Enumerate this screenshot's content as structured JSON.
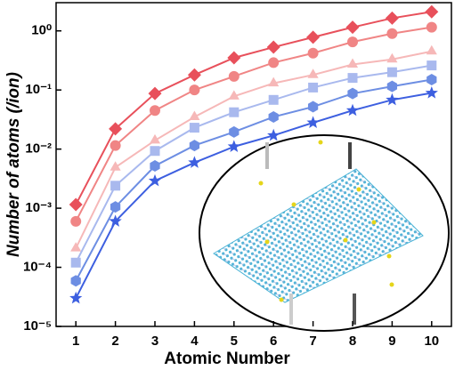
{
  "chart_data": {
    "type": "line",
    "x_label": "Atomic Number",
    "y_label": "Number of atoms (/ion)",
    "y_scale": "log",
    "xlim": [
      0.5,
      10.5
    ],
    "ylim": [
      1e-05,
      3
    ],
    "x": [
      1,
      2,
      3,
      4,
      5,
      6,
      7,
      8,
      9,
      10
    ],
    "xticks": [
      1,
      2,
      3,
      4,
      5,
      6,
      7,
      8,
      9,
      10
    ],
    "yticks": [
      {
        "value": 1e-05,
        "label": "10⁻⁵"
      },
      {
        "value": 0.0001,
        "label": "10⁻⁴"
      },
      {
        "value": 0.001,
        "label": "10⁻³"
      },
      {
        "value": 0.01,
        "label": "10⁻²"
      },
      {
        "value": 0.1,
        "label": "10⁻¹"
      },
      {
        "value": 1,
        "label": "10⁰"
      }
    ],
    "series": [
      {
        "color": "#e8505b",
        "marker": "diamond",
        "values": [
          0.00115,
          0.022,
          0.087,
          0.18,
          0.35,
          0.53,
          0.78,
          1.15,
          1.64,
          2.1
        ]
      },
      {
        "color": "#f08585",
        "marker": "circle",
        "values": [
          0.0006,
          0.0115,
          0.045,
          0.1,
          0.17,
          0.29,
          0.42,
          0.65,
          0.9,
          1.15
        ]
      },
      {
        "color": "#f6b8b8",
        "marker": "triangle",
        "values": [
          0.00021,
          0.0049,
          0.014,
          0.035,
          0.078,
          0.13,
          0.18,
          0.27,
          0.33,
          0.45
        ]
      },
      {
        "color": "#a9b9ee",
        "marker": "square",
        "values": [
          0.00012,
          0.0024,
          0.0093,
          0.023,
          0.042,
          0.068,
          0.11,
          0.16,
          0.2,
          0.26
        ]
      },
      {
        "color": "#6d8ee3",
        "marker": "hexagon",
        "values": [
          5.9e-05,
          0.00105,
          0.0052,
          0.0115,
          0.0195,
          0.035,
          0.052,
          0.087,
          0.115,
          0.15
        ]
      },
      {
        "color": "#3d5fe0",
        "marker": "star",
        "values": [
          3e-05,
          0.0006,
          0.0029,
          0.0059,
          0.011,
          0.017,
          0.028,
          0.045,
          0.068,
          0.089
        ]
      }
    ]
  }
}
